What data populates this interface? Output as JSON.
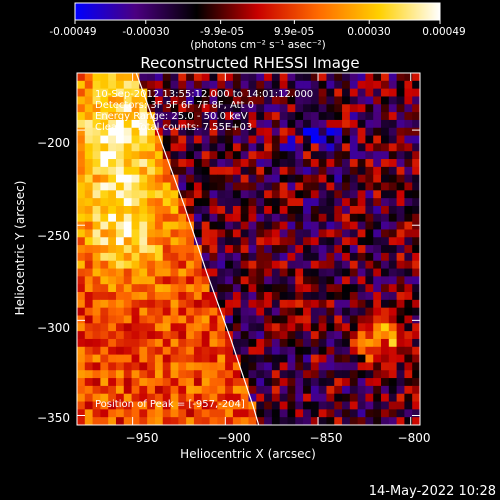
{
  "colorbar": {
    "tick_labels": [
      "-0.00049",
      "-0.00030",
      "-9.9e-05",
      "9.9e-05",
      "0.00030",
      "0.00049"
    ],
    "tick_values": [
      -0.00049,
      -0.0003,
      -9.9e-05,
      9.9e-05,
      0.0003,
      0.00049
    ],
    "min": -0.00049,
    "max": 0.00049,
    "unit_label": "(photons cm⁻² s⁻¹ asec⁻²)",
    "colors": [
      "#0000ff",
      "#4b0080",
      "#000000",
      "#c80000",
      "#ff6a00",
      "#ffd000",
      "#ffffff"
    ]
  },
  "chart_data": {
    "type": "heatmap",
    "title": "Reconstructed RHESSI Image",
    "xlabel": "Heliocentric X (arcsec)",
    "ylabel": "Heliocentric Y (arcsec)",
    "xlim": [
      -980,
      -795
    ],
    "ylim": [
      -355,
      -170
    ],
    "x_ticks": [
      -950,
      -900,
      -850,
      -800
    ],
    "x_tick_labels": [
      "−950",
      "−900",
      "−850",
      "−800"
    ],
    "y_ticks": [
      -200,
      -250,
      -300,
      -350
    ],
    "y_tick_labels": [
      "−200",
      "−250",
      "−300",
      "−350"
    ],
    "annotations": [
      "10-Sep-2012 13:55:12.000 to 14:01:12.000",
      "Detectors: 3F 5F 6F 7F 8F, Att 0",
      "Energy Range: 25.0 - 50.0 keV",
      "Clean    Total counts: 7.55E+03"
    ],
    "peak_label": "Position of Peak = [-957,-204]",
    "peak": {
      "x": -957,
      "y": -204
    },
    "limb_curve": [
      [
        -948,
        -170
      ],
      [
        -935,
        -205
      ],
      [
        -922,
        -240
      ],
      [
        -910,
        -275
      ],
      [
        -897,
        -310
      ],
      [
        -885,
        -345
      ],
      [
        -882,
        -355
      ]
    ],
    "grid": false
  },
  "footer": {
    "timestamp": "14-May-2022 10:28"
  }
}
